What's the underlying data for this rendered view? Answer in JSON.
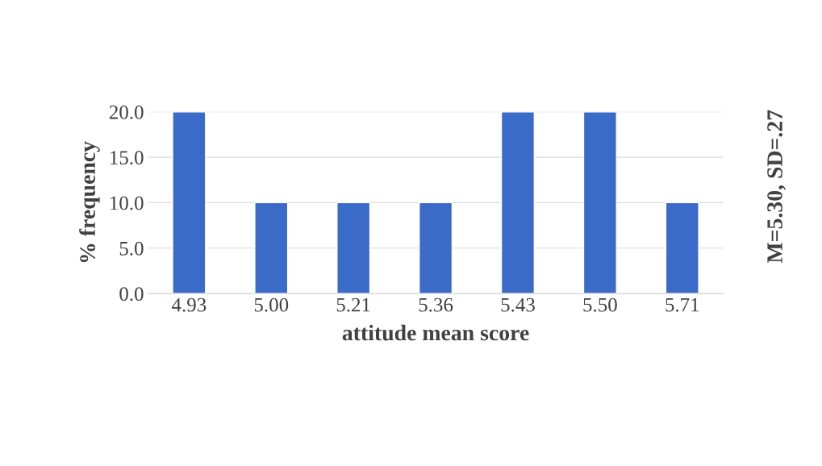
{
  "chart_data": {
    "type": "bar",
    "xlabel": "attitude mean score",
    "ylabel": "% frequency",
    "categories": [
      "4.93",
      "5.00",
      "5.21",
      "5.36",
      "5.43",
      "5.50",
      "5.71"
    ],
    "values": [
      20,
      10,
      10,
      10,
      20,
      20,
      10
    ],
    "color": "#3a6bc9",
    "ylim": [
      0,
      20
    ],
    "yticks": [
      {
        "value": 0,
        "label": "0.0"
      },
      {
        "value": 5,
        "label": "5.0"
      },
      {
        "value": 10,
        "label": "10.0"
      },
      {
        "value": 15,
        "label": "15.0"
      },
      {
        "value": 20,
        "label": "20.0"
      }
    ],
    "grid": "y",
    "annotations": [
      "M=5.30, SD=.27"
    ]
  }
}
